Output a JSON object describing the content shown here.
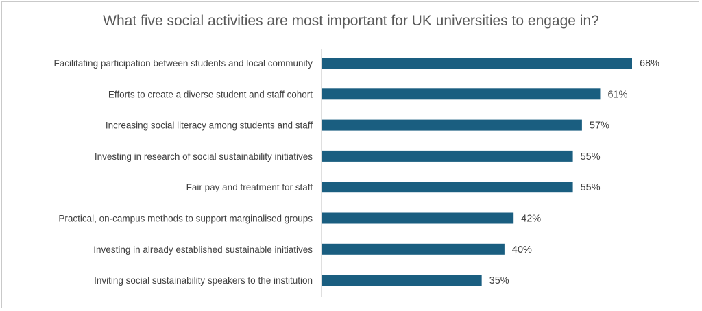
{
  "chart_data": {
    "type": "bar",
    "orientation": "horizontal",
    "title": "What five social activities are most important for UK universities to engage in?",
    "categories": [
      "Facilitating participation between students and local community",
      "Efforts to create a diverse student and staff cohort",
      "Increasing social literacy among students and staff",
      "Investing in research of social sustainability initiatives",
      "Fair pay and treatment for staff",
      "Practical, on-campus methods to support marginalised groups",
      "Investing in already established sustainable initiatives",
      "Inviting social sustainability speakers to the institution"
    ],
    "values": [
      68,
      61,
      57,
      55,
      55,
      42,
      40,
      35
    ],
    "data_labels": [
      "68%",
      "61%",
      "57%",
      "55%",
      "55%",
      "42%",
      "40%",
      "35%"
    ],
    "unit": "%",
    "bar_color": "#1a5e80",
    "grid": false,
    "legend": "none"
  }
}
